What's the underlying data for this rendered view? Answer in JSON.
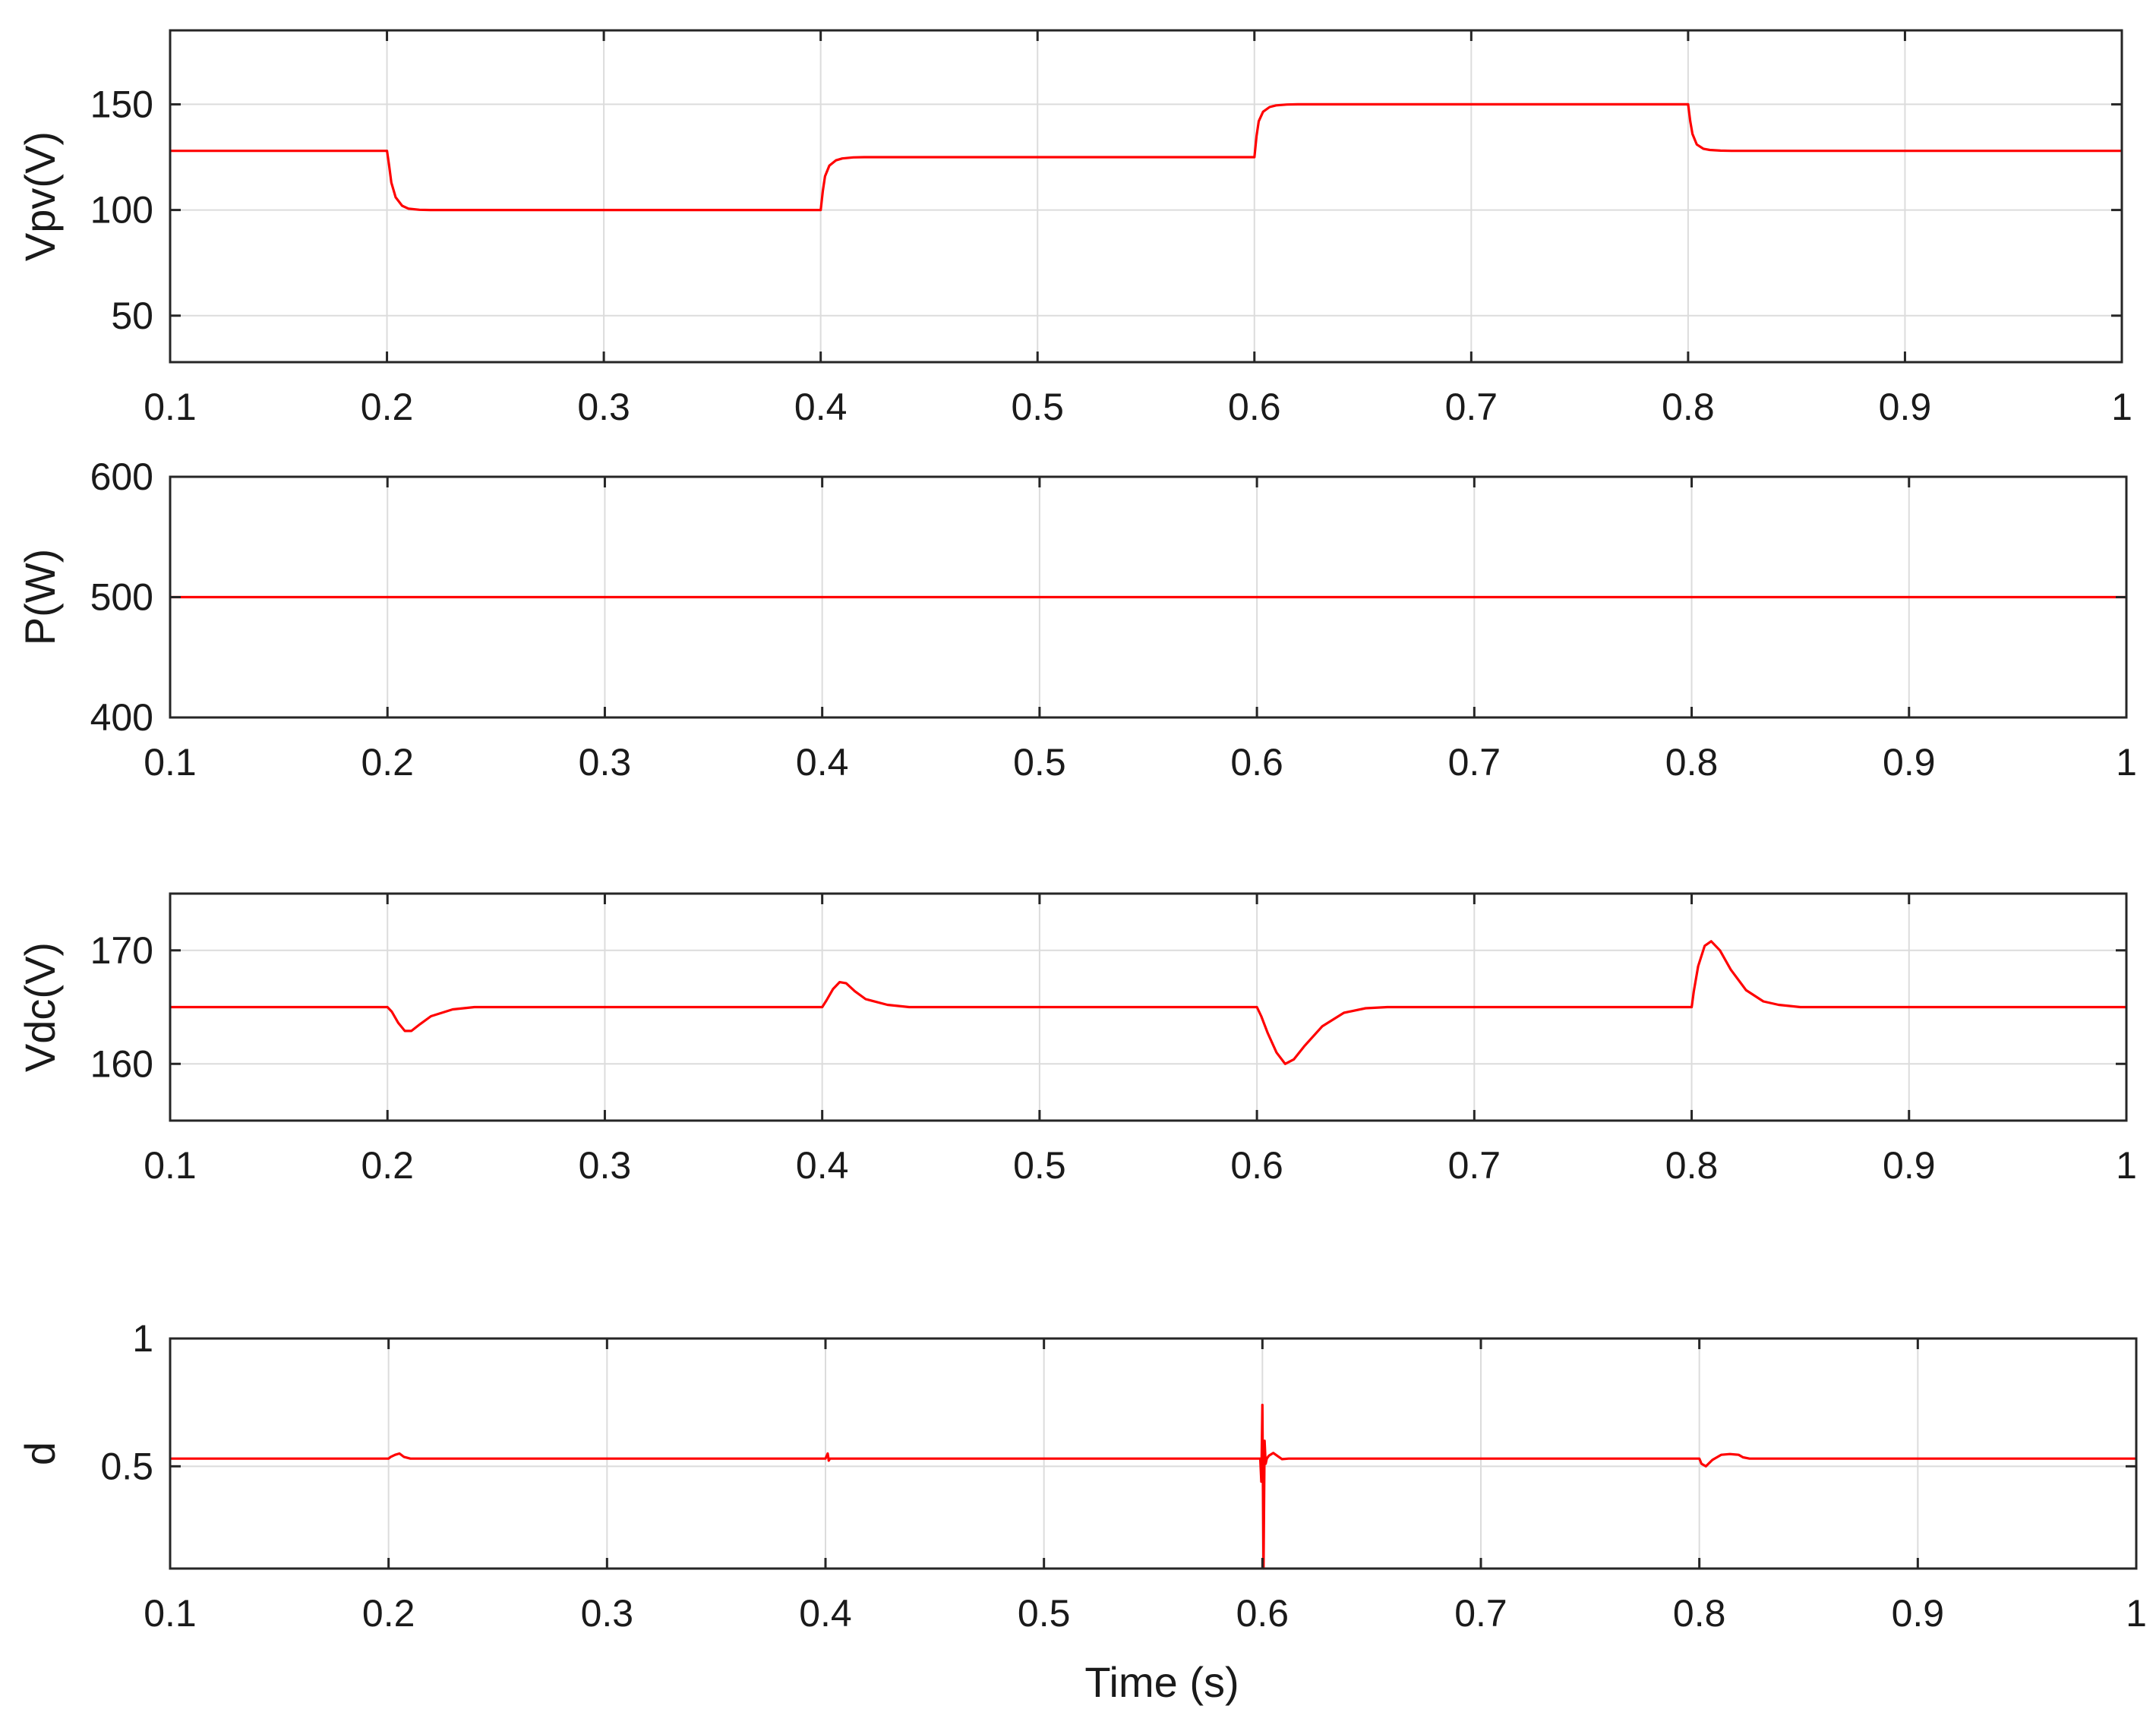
{
  "figure": {
    "xlabel": "Time (s)"
  },
  "chart_data": [
    {
      "type": "line",
      "ylabel": "Vpv(V)",
      "xlim": [
        0.1,
        1.0
      ],
      "ylim": [
        28,
        185
      ],
      "xticks": [
        0.1,
        0.2,
        0.3,
        0.4,
        0.5,
        0.6,
        0.7,
        0.8,
        0.9,
        1
      ],
      "xtick_labels": [
        "0.1",
        "0.2",
        "0.3",
        "0.4",
        "0.5",
        "0.6",
        "0.7",
        "0.8",
        "0.9",
        "1"
      ],
      "yticks": [
        50,
        100,
        150
      ],
      "ytick_labels": [
        "50",
        "100",
        "150"
      ],
      "grid": true,
      "color": "#ff0000",
      "series": [
        {
          "x": [
            0.1,
            0.2,
            0.201,
            0.202,
            0.204,
            0.207,
            0.21,
            0.215,
            0.22,
            0.4,
            0.401,
            0.402,
            0.404,
            0.407,
            0.41,
            0.415,
            0.42,
            0.6,
            0.601,
            0.602,
            0.604,
            0.607,
            0.61,
            0.615,
            0.62,
            0.8,
            0.801,
            0.802,
            0.804,
            0.807,
            0.81,
            0.815,
            0.82,
            1.0
          ],
          "y": [
            128,
            128,
            121,
            113,
            106,
            102,
            100.6,
            100.1,
            100,
            100,
            109,
            116,
            121,
            123.5,
            124.4,
            124.9,
            125,
            125,
            135,
            142,
            146.5,
            148.7,
            149.5,
            149.9,
            150,
            150,
            142,
            136,
            131,
            129,
            128.4,
            128.1,
            128,
            128
          ]
        }
      ]
    },
    {
      "type": "line",
      "ylabel": "P(W)",
      "xlim": [
        0.1,
        1.0
      ],
      "ylim": [
        400,
        600
      ],
      "xticks": [
        0.1,
        0.2,
        0.3,
        0.4,
        0.5,
        0.6,
        0.7,
        0.8,
        0.9,
        1
      ],
      "xtick_labels": [
        "0.1",
        "0.2",
        "0.3",
        "0.4",
        "0.5",
        "0.6",
        "0.7",
        "0.8",
        "0.9",
        "1"
      ],
      "yticks": [
        400,
        500,
        600
      ],
      "ytick_labels": [
        "400",
        "500",
        "600"
      ],
      "grid": true,
      "color": "#ff0000",
      "series": [
        {
          "x": [
            0.1,
            1.0
          ],
          "y": [
            500,
            500
          ]
        }
      ]
    },
    {
      "type": "line",
      "ylabel": "Vdc(V)",
      "xlim": [
        0.1,
        1.0
      ],
      "ylim": [
        155,
        175
      ],
      "xticks": [
        0.1,
        0.2,
        0.3,
        0.4,
        0.5,
        0.6,
        0.7,
        0.8,
        0.9,
        1
      ],
      "xtick_labels": [
        "0.1",
        "0.2",
        "0.3",
        "0.4",
        "0.5",
        "0.6",
        "0.7",
        "0.8",
        "0.9",
        "1"
      ],
      "yticks": [
        160,
        170
      ],
      "ytick_labels": [
        "160",
        "170"
      ],
      "grid": true,
      "color": "#ff0000",
      "series": [
        {
          "x": [
            0.1,
            0.2,
            0.202,
            0.205,
            0.208,
            0.211,
            0.215,
            0.22,
            0.23,
            0.24,
            0.25,
            0.4,
            0.402,
            0.405,
            0.408,
            0.411,
            0.415,
            0.42,
            0.43,
            0.44,
            0.45,
            0.6,
            0.602,
            0.605,
            0.609,
            0.613,
            0.617,
            0.622,
            0.63,
            0.64,
            0.65,
            0.66,
            0.8,
            0.801,
            0.803,
            0.806,
            0.809,
            0.813,
            0.818,
            0.825,
            0.833,
            0.84,
            0.85,
            0.86,
            1.0
          ],
          "y": [
            165,
            165,
            164.6,
            163.6,
            162.9,
            162.9,
            163.5,
            164.2,
            164.8,
            165,
            165,
            165,
            165.6,
            166.6,
            167.2,
            167.1,
            166.4,
            165.7,
            165.2,
            165,
            165,
            165,
            164.2,
            162.7,
            161.0,
            160.0,
            160.4,
            161.6,
            163.3,
            164.5,
            164.9,
            165,
            165,
            166.4,
            168.6,
            170.4,
            170.8,
            170.0,
            168.3,
            166.5,
            165.5,
            165.2,
            165,
            165,
            165
          ]
        }
      ]
    },
    {
      "type": "line",
      "ylabel": "d",
      "xlim": [
        0.1,
        1.0
      ],
      "ylim": [
        0.1,
        1.0
      ],
      "xticks": [
        0.1,
        0.2,
        0.3,
        0.4,
        0.5,
        0.6,
        0.7,
        0.8,
        0.9,
        1
      ],
      "xtick_labels": [
        "0.1",
        "0.2",
        "0.3",
        "0.4",
        "0.5",
        "0.6",
        "0.7",
        "0.8",
        "0.9",
        "1"
      ],
      "yticks": [
        0.5,
        1
      ],
      "ytick_labels": [
        "0.5",
        "1"
      ],
      "grid": true,
      "color": "#ff0000",
      "series": [
        {
          "x": [
            0.1,
            0.2,
            0.201,
            0.203,
            0.205,
            0.207,
            0.21,
            0.4,
            0.401,
            0.4015,
            0.402,
            0.41,
            0.599,
            0.5995,
            0.6,
            0.6005,
            0.601,
            0.6015,
            0.602,
            0.603,
            0.605,
            0.607,
            0.609,
            0.612,
            0.8,
            0.801,
            0.803,
            0.806,
            0.81,
            0.814,
            0.818,
            0.82,
            0.823,
            1.0
          ],
          "y": [
            0.53,
            0.53,
            0.537,
            0.545,
            0.55,
            0.537,
            0.53,
            0.53,
            0.55,
            0.522,
            0.53,
            0.53,
            0.53,
            0.44,
            0.74,
            0.1,
            0.6,
            0.51,
            0.53,
            0.542,
            0.552,
            0.54,
            0.528,
            0.53,
            0.53,
            0.51,
            0.5,
            0.525,
            0.545,
            0.548,
            0.545,
            0.535,
            0.53,
            0.53
          ]
        }
      ]
    }
  ]
}
